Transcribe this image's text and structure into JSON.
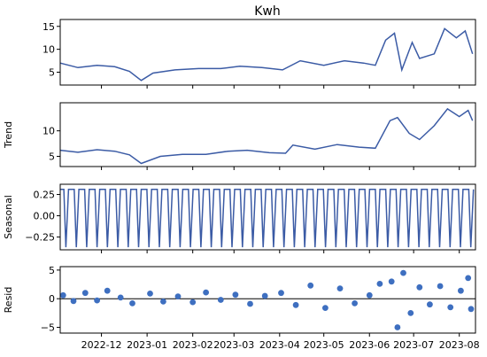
{
  "chart_data": {
    "type": "line",
    "title": "Kwh",
    "x_ticks": [
      "2022-12",
      "2023-01",
      "2023-02",
      "2023-03",
      "2023-04",
      "2023-05",
      "2023-06",
      "2023-07",
      "2023-08"
    ],
    "x_range": [
      "2022-11-03",
      "2023-08-12"
    ],
    "line_color": "#3b5ba5",
    "dot_color": "#3e6fc0",
    "panels": [
      {
        "name": "observed",
        "ylabel": "",
        "ylim": [
          2.2,
          16.5
        ],
        "yticks": [
          5,
          10,
          15
        ],
        "series": [
          {
            "date": "2022-11-03",
            "value": 7.0
          },
          {
            "date": "2022-11-15",
            "value": 6.0
          },
          {
            "date": "2022-11-28",
            "value": 6.5
          },
          {
            "date": "2022-12-10",
            "value": 6.2
          },
          {
            "date": "2022-12-20",
            "value": 5.2
          },
          {
            "date": "2022-12-28",
            "value": 3.2
          },
          {
            "date": "2023-01-05",
            "value": 4.8
          },
          {
            "date": "2023-01-20",
            "value": 5.5
          },
          {
            "date": "2023-02-05",
            "value": 5.8
          },
          {
            "date": "2023-02-20",
            "value": 5.8
          },
          {
            "date": "2023-03-05",
            "value": 6.3
          },
          {
            "date": "2023-03-20",
            "value": 6.0
          },
          {
            "date": "2023-04-03",
            "value": 5.5
          },
          {
            "date": "2023-04-15",
            "value": 7.5
          },
          {
            "date": "2023-05-01",
            "value": 6.5
          },
          {
            "date": "2023-05-15",
            "value": 7.5
          },
          {
            "date": "2023-05-28",
            "value": 7.0
          },
          {
            "date": "2023-06-05",
            "value": 6.5
          },
          {
            "date": "2023-06-12",
            "value": 12.0
          },
          {
            "date": "2023-06-18",
            "value": 13.5
          },
          {
            "date": "2023-06-23",
            "value": 5.5
          },
          {
            "date": "2023-06-30",
            "value": 11.5
          },
          {
            "date": "2023-07-05",
            "value": 8.0
          },
          {
            "date": "2023-07-15",
            "value": 9.0
          },
          {
            "date": "2023-07-22",
            "value": 14.5
          },
          {
            "date": "2023-07-30",
            "value": 12.5
          },
          {
            "date": "2023-08-05",
            "value": 14.0
          },
          {
            "date": "2023-08-10",
            "value": 9.0
          }
        ]
      },
      {
        "name": "trend",
        "ylabel": "Trend",
        "ylim": [
          3.0,
          15.5
        ],
        "yticks": [
          5,
          10
        ],
        "series": [
          {
            "date": "2022-11-03",
            "value": 6.2
          },
          {
            "date": "2022-11-15",
            "value": 5.8
          },
          {
            "date": "2022-11-28",
            "value": 6.3
          },
          {
            "date": "2022-12-10",
            "value": 6.0
          },
          {
            "date": "2022-12-20",
            "value": 5.3
          },
          {
            "date": "2022-12-28",
            "value": 3.6
          },
          {
            "date": "2023-01-10",
            "value": 5.0
          },
          {
            "date": "2023-01-25",
            "value": 5.4
          },
          {
            "date": "2023-02-10",
            "value": 5.4
          },
          {
            "date": "2023-02-25",
            "value": 6.0
          },
          {
            "date": "2023-03-10",
            "value": 6.2
          },
          {
            "date": "2023-03-25",
            "value": 5.7
          },
          {
            "date": "2023-04-05",
            "value": 5.6
          },
          {
            "date": "2023-04-10",
            "value": 7.2
          },
          {
            "date": "2023-04-25",
            "value": 6.4
          },
          {
            "date": "2023-05-10",
            "value": 7.3
          },
          {
            "date": "2023-05-25",
            "value": 6.8
          },
          {
            "date": "2023-06-05",
            "value": 6.6
          },
          {
            "date": "2023-06-15",
            "value": 12.0
          },
          {
            "date": "2023-06-20",
            "value": 12.6
          },
          {
            "date": "2023-06-28",
            "value": 9.5
          },
          {
            "date": "2023-07-05",
            "value": 8.3
          },
          {
            "date": "2023-07-15",
            "value": 11.0
          },
          {
            "date": "2023-07-24",
            "value": 14.3
          },
          {
            "date": "2023-08-01",
            "value": 12.8
          },
          {
            "date": "2023-08-07",
            "value": 14.0
          },
          {
            "date": "2023-08-10",
            "value": 12.0
          }
        ]
      },
      {
        "name": "seasonal",
        "ylabel": "Seasonal",
        "ylim": [
          -0.4,
          0.37
        ],
        "yticks": [
          0.25,
          0.0,
          -0.25
        ],
        "ytick_labels": [
          "0.25",
          "0.00",
          "−0.25"
        ],
        "cycle_high": 0.31,
        "cycle_low": -0.37,
        "cycle_count": 40
      },
      {
        "name": "resid",
        "ylabel": "Resid",
        "ylim": [
          -6.0,
          5.6
        ],
        "yticks": [
          5,
          0,
          -5
        ],
        "ytick_labels": [
          "5",
          "0",
          "−5"
        ],
        "baseline": 0,
        "points": [
          {
            "date": "2022-11-05",
            "value": 0.6
          },
          {
            "date": "2022-11-12",
            "value": -0.4
          },
          {
            "date": "2022-11-20",
            "value": 1.0
          },
          {
            "date": "2022-11-28",
            "value": -0.3
          },
          {
            "date": "2022-12-05",
            "value": 1.4
          },
          {
            "date": "2022-12-14",
            "value": 0.2
          },
          {
            "date": "2022-12-22",
            "value": -0.8
          },
          {
            "date": "2023-01-03",
            "value": 0.9
          },
          {
            "date": "2023-01-12",
            "value": -0.5
          },
          {
            "date": "2023-01-22",
            "value": 0.4
          },
          {
            "date": "2023-02-01",
            "value": -0.6
          },
          {
            "date": "2023-02-10",
            "value": 1.1
          },
          {
            "date": "2023-02-20",
            "value": -0.2
          },
          {
            "date": "2023-03-02",
            "value": 0.7
          },
          {
            "date": "2023-03-12",
            "value": -0.9
          },
          {
            "date": "2023-03-22",
            "value": 0.5
          },
          {
            "date": "2023-04-02",
            "value": 1.0
          },
          {
            "date": "2023-04-12",
            "value": -1.1
          },
          {
            "date": "2023-04-22",
            "value": 2.3
          },
          {
            "date": "2023-05-02",
            "value": -1.6
          },
          {
            "date": "2023-05-12",
            "value": 1.8
          },
          {
            "date": "2023-05-22",
            "value": -0.8
          },
          {
            "date": "2023-06-01",
            "value": 0.6
          },
          {
            "date": "2023-06-08",
            "value": 2.6
          },
          {
            "date": "2023-06-16",
            "value": 3.0
          },
          {
            "date": "2023-06-20",
            "value": -5.0
          },
          {
            "date": "2023-06-24",
            "value": 4.5
          },
          {
            "date": "2023-06-29",
            "value": -2.5
          },
          {
            "date": "2023-07-05",
            "value": 2.0
          },
          {
            "date": "2023-07-12",
            "value": -1.0
          },
          {
            "date": "2023-07-19",
            "value": 2.2
          },
          {
            "date": "2023-07-26",
            "value": -1.5
          },
          {
            "date": "2023-08-02",
            "value": 1.4
          },
          {
            "date": "2023-08-07",
            "value": 3.6
          },
          {
            "date": "2023-08-09",
            "value": -1.8
          }
        ]
      }
    ]
  }
}
